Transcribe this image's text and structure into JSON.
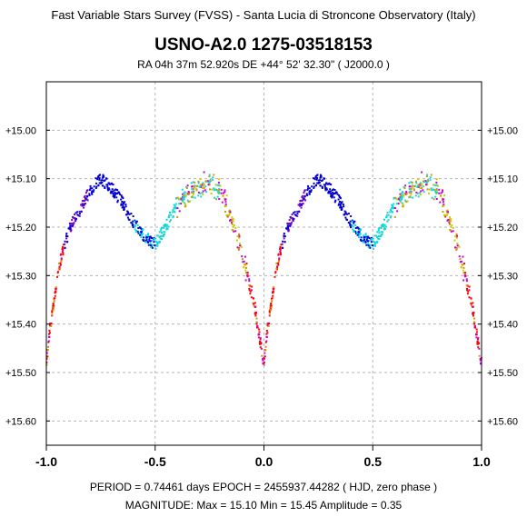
{
  "header": {
    "survey": "Fast Variable Stars Survey (FVSS) - Santa Lucia di Stroncone Observatory (Italy)",
    "object_name": "USNO-A2.0  1275-03518153",
    "coordinates": "RA  04h 37m 52.920s    DE  +44° 52' 32.30\"     ( J2000.0 )"
  },
  "footer": {
    "period_epoch": "PERIOD = 0.74461 days     EPOCH = 2455937.44282  ( HJD, zero phase )",
    "magnitude_summary": "MAGNITUDE:  Max = 15.10    Min = 15.45    Amplitude = 0.35"
  },
  "chart_data": {
    "type": "scatter",
    "title": "USNO-A2.0  1275-03518153",
    "xlim": [
      -1.0,
      1.0
    ],
    "ylim": [
      15.65,
      14.9
    ],
    "y_inverted": true,
    "grid": true,
    "x_ticks": [
      -1.0,
      -0.5,
      0.0,
      0.5,
      1.0
    ],
    "x_tick_labels": [
      "-1.0",
      "-0.5",
      "0.0",
      "0.5",
      "1.0"
    ],
    "y_ticks": [
      15.0,
      15.1,
      15.2,
      15.3,
      15.4,
      15.5,
      15.6
    ],
    "y_tick_labels": [
      "+15.00",
      "+15.10",
      "+15.20",
      "+15.30",
      "+15.40",
      "+15.50",
      "+15.60"
    ],
    "period_days": 0.74461,
    "epoch_hjd": 2455937.44282,
    "mag_max": 15.1,
    "mag_min": 15.45,
    "amplitude": 0.35,
    "light_curve": {
      "phase": [
        0.0,
        0.02,
        0.05,
        0.08,
        0.12,
        0.16,
        0.2,
        0.25,
        0.3,
        0.35,
        0.4,
        0.45,
        0.5,
        0.55,
        0.6,
        0.65,
        0.7,
        0.73,
        0.78,
        0.82,
        0.86,
        0.9,
        0.93,
        0.96,
        0.98,
        1.0
      ],
      "magnitude": [
        15.48,
        15.4,
        15.3,
        15.24,
        15.19,
        15.16,
        15.125,
        15.1,
        15.12,
        15.15,
        15.19,
        15.22,
        15.235,
        15.2,
        15.15,
        15.125,
        15.11,
        15.105,
        15.11,
        15.14,
        15.19,
        15.25,
        15.3,
        15.37,
        15.43,
        15.48
      ]
    },
    "series_colors": [
      "#0000cc",
      "#7a00cc",
      "#cc00cc",
      "#ff0000",
      "#cc9900",
      "#cccc00",
      "#00dddd",
      "#33cccc"
    ]
  }
}
